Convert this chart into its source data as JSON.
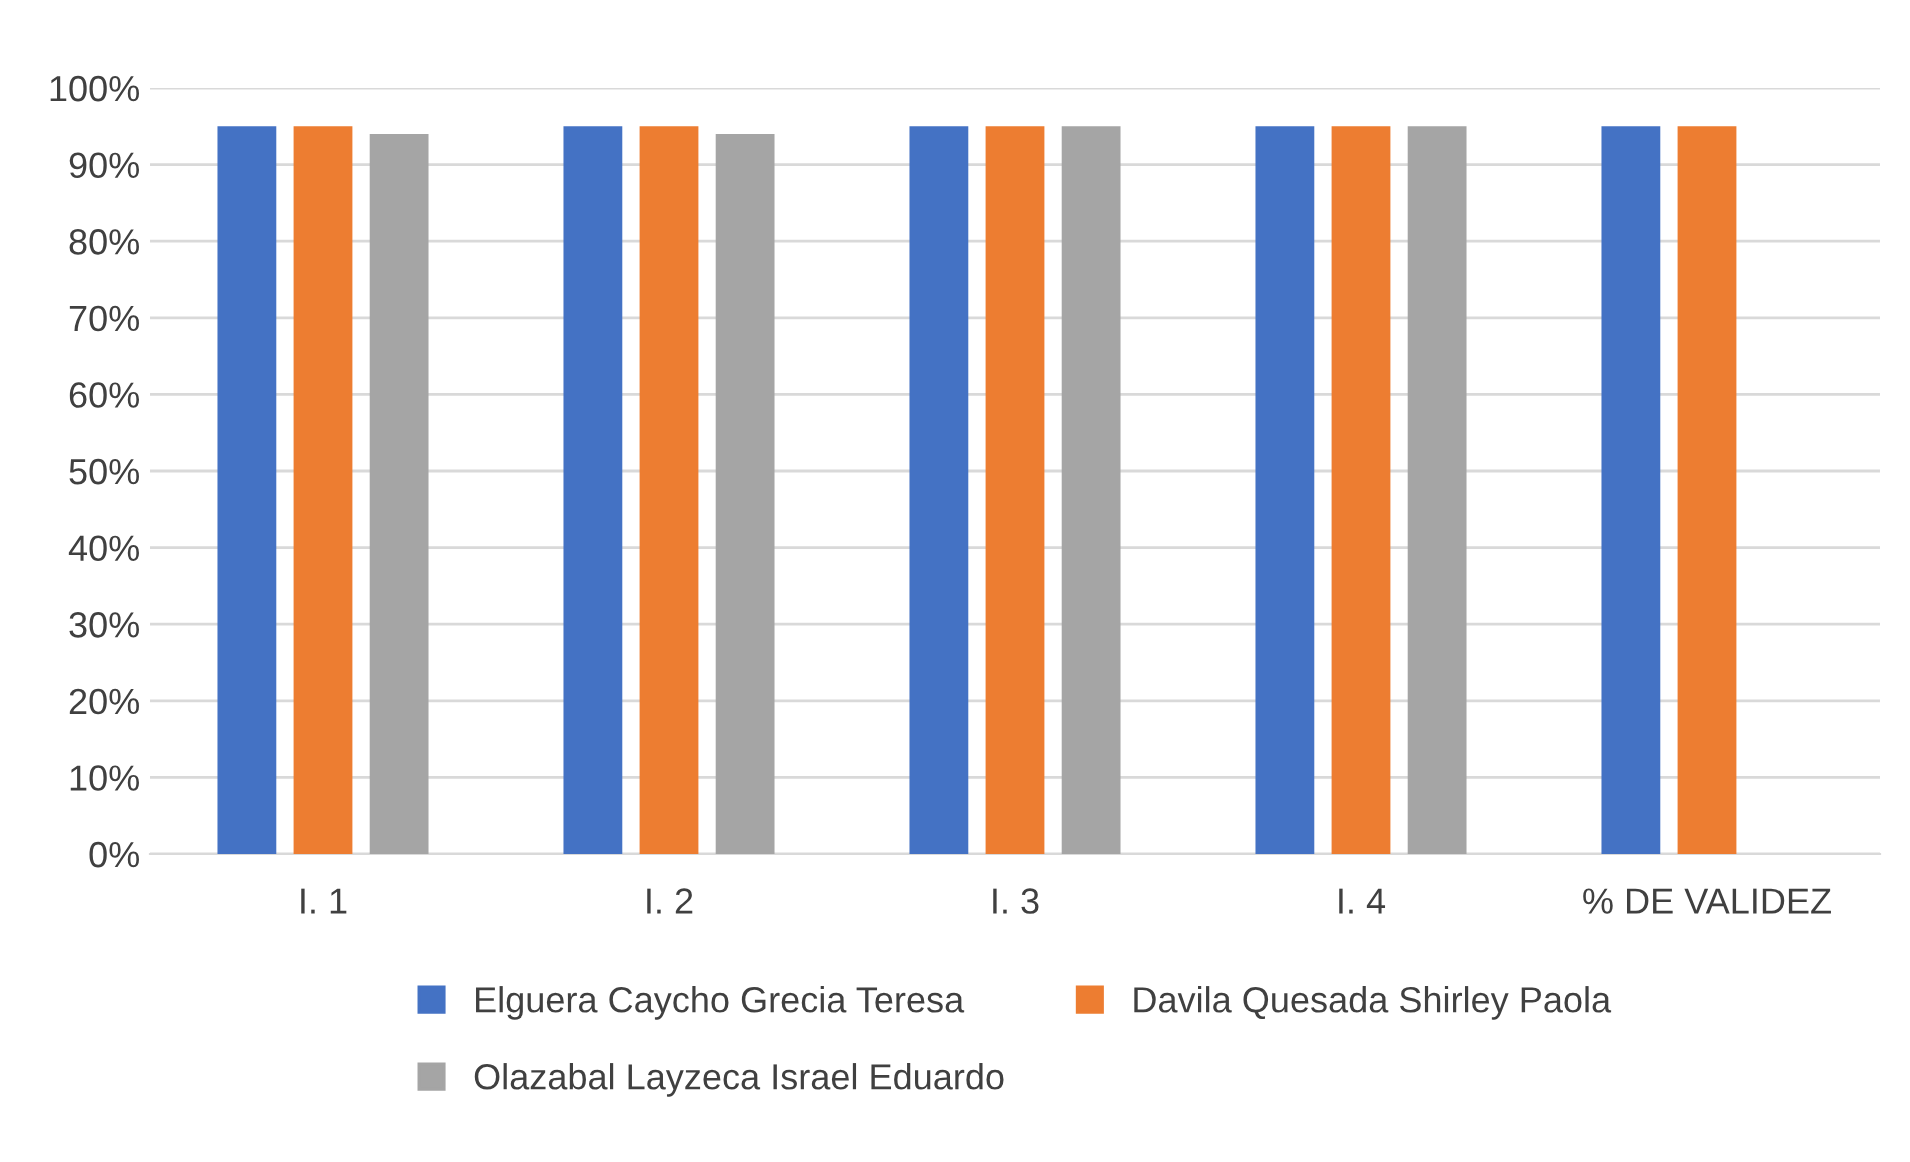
{
  "chart_data": {
    "type": "bar",
    "categories": [
      "I. 1",
      "I. 2",
      "I. 3",
      "I. 4",
      "% DE VALIDEZ"
    ],
    "series": [
      {
        "name": "Elguera Caycho Grecia Teresa",
        "color": "#4472c4",
        "values": [
          95,
          95,
          95,
          95,
          95
        ]
      },
      {
        "name": "Davila Quesada Shirley Paola",
        "color": "#ed7d31",
        "values": [
          95,
          95,
          95,
          95,
          95
        ]
      },
      {
        "name": "Olazabal Layzeca Israel Eduardo",
        "color": "#a5a5a5",
        "values": [
          94,
          94,
          95,
          95,
          null
        ]
      }
    ],
    "ylim": [
      0,
      100
    ],
    "yticks": [
      {
        "value": 0,
        "label": "0%"
      },
      {
        "value": 10,
        "label": "10%"
      },
      {
        "value": 20,
        "label": "20%"
      },
      {
        "value": 30,
        "label": "30%"
      },
      {
        "value": 40,
        "label": "40%"
      },
      {
        "value": 50,
        "label": "50%"
      },
      {
        "value": 60,
        "label": "60%"
      },
      {
        "value": 70,
        "label": "70%"
      },
      {
        "value": 80,
        "label": "80%"
      },
      {
        "value": 90,
        "label": "90%"
      },
      {
        "value": 100,
        "label": "100%"
      }
    ],
    "grid": "y",
    "legend": "bottom"
  }
}
